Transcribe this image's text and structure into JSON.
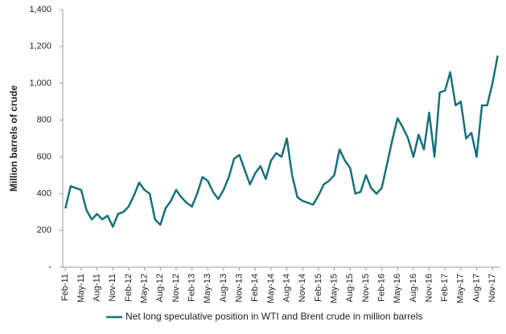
{
  "chart_data": {
    "type": "line",
    "y_label": "Million barrels of crude",
    "categories": [
      "Feb-11",
      null,
      null,
      "May-11",
      null,
      null,
      "Aug-11",
      null,
      null,
      "Nov-11",
      null,
      null,
      "Feb-12",
      null,
      null,
      "May-12",
      null,
      null,
      "Aug-12",
      null,
      null,
      "Nov-12",
      null,
      null,
      "Feb-13",
      null,
      null,
      "May-13",
      null,
      null,
      "Aug-13",
      null,
      null,
      "Nov-13",
      null,
      null,
      "Feb-14",
      null,
      null,
      "May-14",
      null,
      null,
      "Aug-14",
      null,
      null,
      "Nov-14",
      null,
      null,
      "Feb-15",
      null,
      null,
      "May-15",
      null,
      null,
      "Aug-15",
      null,
      null,
      "Nov-15",
      null,
      null,
      "Feb-16",
      null,
      null,
      "May-16",
      null,
      null,
      "Aug-16",
      null,
      null,
      "Nov-16",
      null,
      null,
      "Feb-17",
      null,
      null,
      "May-17",
      null,
      null,
      "Aug-17",
      null,
      null,
      "Nov-17",
      null
    ],
    "series": [
      {
        "name": "Net long speculative position in WTI and Brent crude in million barrels",
        "color": "#17707a",
        "values": [
          320,
          440,
          430,
          420,
          310,
          260,
          290,
          260,
          280,
          220,
          290,
          300,
          330,
          390,
          460,
          420,
          400,
          260,
          230,
          320,
          360,
          420,
          380,
          350,
          330,
          400,
          490,
          470,
          410,
          370,
          420,
          490,
          590,
          610,
          530,
          450,
          510,
          550,
          480,
          580,
          620,
          600,
          700,
          500,
          380,
          360,
          350,
          340,
          390,
          450,
          470,
          500,
          640,
          580,
          540,
          400,
          410,
          500,
          430,
          400,
          430,
          560,
          690,
          810,
          760,
          700,
          600,
          720,
          640,
          840,
          600,
          950,
          960,
          1060,
          880,
          900,
          700,
          730,
          600,
          880,
          880,
          1000,
          1150
        ]
      }
    ],
    "ylim": [
      0,
      1400
    ],
    "yticks": [
      {
        "value": 0,
        "label": "-"
      },
      200,
      400,
      600,
      800,
      {
        "value": 1000,
        "label": "1,000"
      },
      {
        "value": 1200,
        "label": "1,200"
      },
      {
        "value": 1400,
        "label": "1,400"
      }
    ],
    "grid": false,
    "legend": "bottom"
  }
}
